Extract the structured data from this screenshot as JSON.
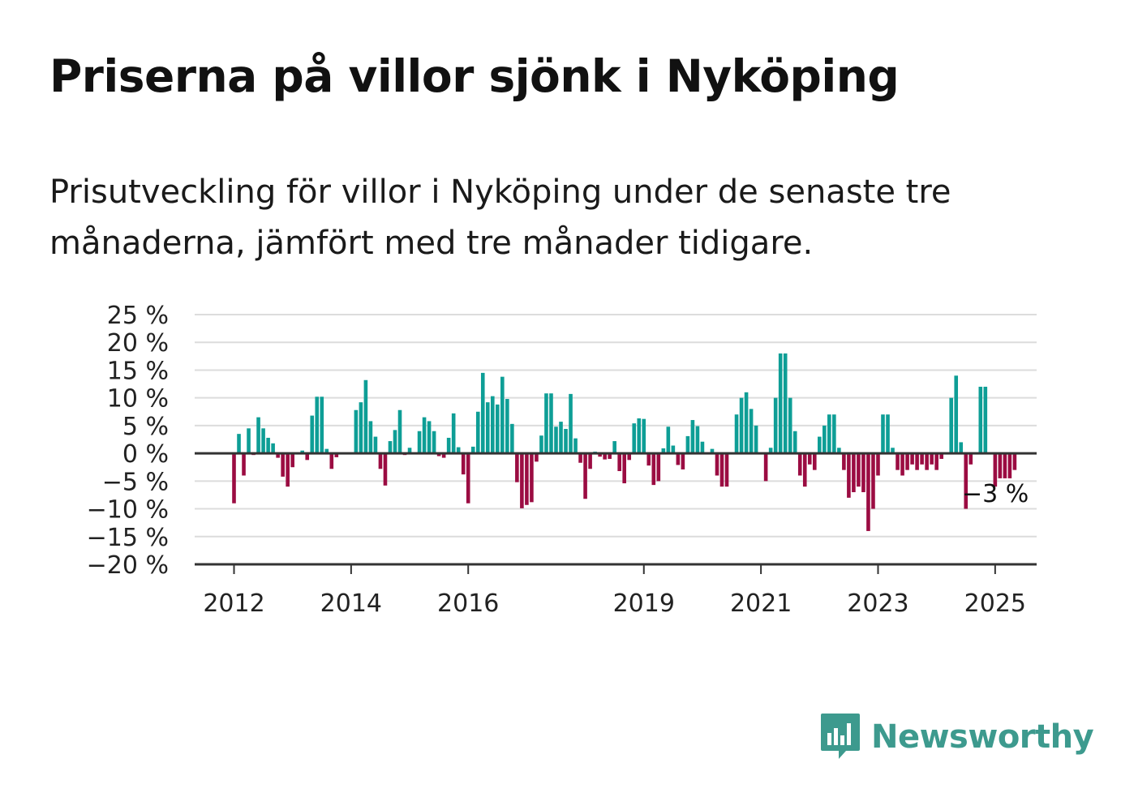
{
  "title": "Priserna på villor sjönk i Nyköping",
  "subtitle": "Prisutveckling för villor i Nyköping under de senaste tre månaderna, jämfört med tre månader tidigare.",
  "brand": {
    "name": "Newsworthy",
    "icon": "newsworthy-chart-bubble-icon",
    "color": "#3d9a8e"
  },
  "colors": {
    "positive": "#0e9e96",
    "negative": "#9b0c42",
    "grid": "#dcdcdc",
    "axis": "#333333"
  },
  "chart_data": {
    "type": "bar",
    "title": "Priserna på villor sjönk i Nyköping",
    "xlabel": "",
    "ylabel": "",
    "x_start": "2012-01",
    "x_frequency": "monthly",
    "x_ticks": [
      "2012",
      "2014",
      "2016",
      "2019",
      "2021",
      "2023",
      "2025"
    ],
    "y_ticks": [
      "25 %",
      "20 %",
      "15 %",
      "10 %",
      "5 %",
      "0 %",
      "−5 %",
      "−10 %",
      "−15 %",
      "−20 %"
    ],
    "ylim": [
      -20,
      25
    ],
    "unit": "%",
    "grid": true,
    "last_label": "−3 %",
    "values": [
      -9,
      3.5,
      -4,
      4.5,
      -0.3,
      6.5,
      4.5,
      2.8,
      1.8,
      -0.8,
      -4.2,
      -6,
      -2.5,
      0,
      0.5,
      -1.2,
      6.8,
      10.2,
      10.2,
      0.8,
      -2.8,
      -0.7,
      0,
      0,
      0,
      7.8,
      9.2,
      13.2,
      5.8,
      3,
      -2.8,
      -5.8,
      2.2,
      4.2,
      7.8,
      -0.3,
      1,
      0,
      4,
      6.5,
      5.8,
      4,
      -0.5,
      -0.8,
      2.8,
      7.2,
      1.1,
      -3.8,
      -9,
      1.2,
      7.5,
      14.5,
      9.2,
      10.3,
      8.8,
      13.8,
      9.8,
      5.3,
      -5.2,
      -9.9,
      -9.3,
      -8.8,
      -1.5,
      3.2,
      10.8,
      10.8,
      4.8,
      5.7,
      4.4,
      10.7,
      2.7,
      -1.7,
      -8.2,
      -2.8,
      0.3,
      -0.6,
      -1.1,
      -1,
      2.2,
      -3.2,
      -5.4,
      -1.2,
      5.4,
      6.3,
      6.2,
      -2.2,
      -5.7,
      -5,
      0.9,
      4.8,
      1.4,
      -2.1,
      -2.9,
      3.1,
      6,
      4.9,
      2.1,
      0,
      0.8,
      -4,
      -6,
      -6,
      0,
      7,
      10,
      11,
      8,
      5,
      0,
      -5,
      1,
      10,
      18,
      18,
      10,
      4,
      -4,
      -6,
      -2,
      -3,
      3,
      5,
      7,
      7,
      1,
      -3,
      -8,
      -7,
      -6,
      -7,
      -14,
      -10,
      -4,
      7,
      7,
      1,
      -3,
      -4,
      -3,
      -2,
      -3,
      -2,
      -3,
      -2,
      -3,
      -1,
      0,
      10,
      14,
      2,
      -10,
      -2,
      0,
      12,
      12,
      0,
      -6,
      -4.5,
      -4.5,
      -4.5,
      -3
    ]
  }
}
